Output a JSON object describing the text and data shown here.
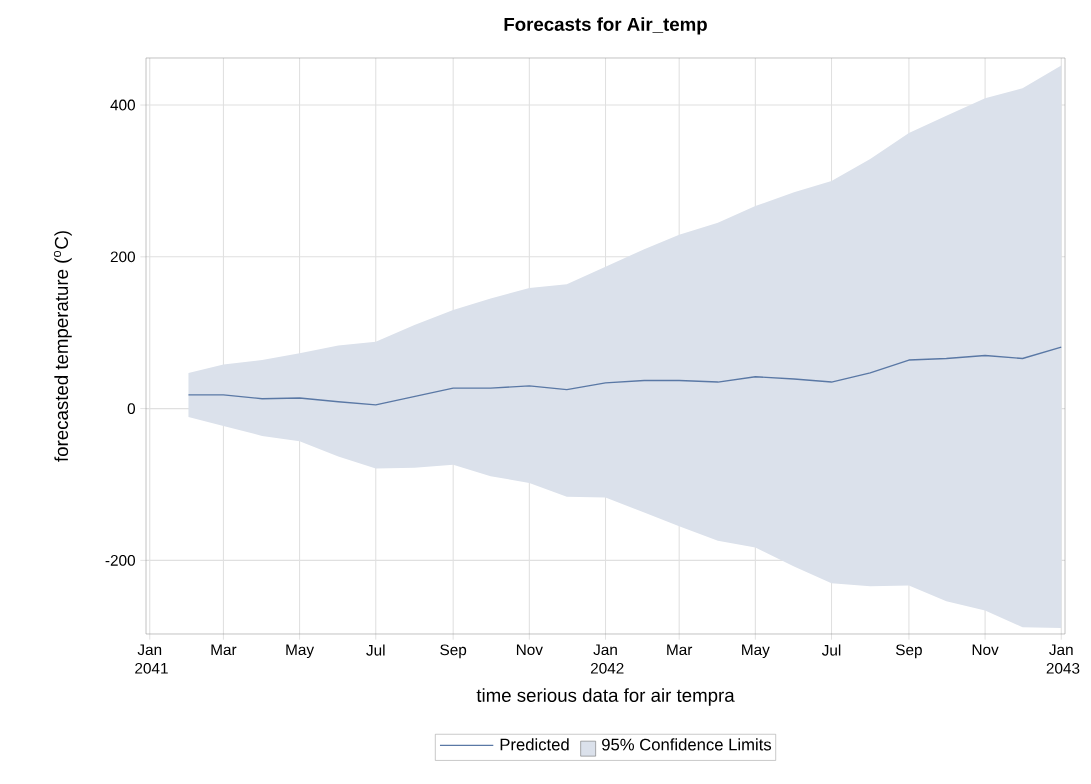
{
  "chart_data": {
    "type": "line",
    "title": "Forecasts for Air_temp",
    "xlabel": "time serious data for air tempra",
    "ylabel": "forecasted temperature ($^{o}$C)",
    "x": [
      "2041-02",
      "2041-03",
      "2041-04",
      "2041-05",
      "2041-06",
      "2041-07",
      "2041-08",
      "2041-09",
      "2041-10",
      "2041-11",
      "2041-12",
      "2042-01",
      "2042-02",
      "2042-03",
      "2042-04",
      "2042-05",
      "2042-06",
      "2042-07",
      "2042-08",
      "2042-09",
      "2042-10",
      "2042-11",
      "2042-12",
      "2043-01"
    ],
    "series": [
      {
        "name": "Predicted",
        "color": "#5a78a5",
        "values": [
          18,
          18,
          13,
          14,
          9,
          5,
          16,
          27,
          27,
          30,
          25,
          34,
          37,
          37,
          35,
          42,
          39,
          35,
          47,
          64,
          66,
          70,
          66,
          81
        ],
        "lower": [
          -11,
          -23,
          -36,
          -43,
          -63,
          -79,
          -78,
          -74,
          -89,
          -98,
          -116,
          -117,
          -137,
          -155,
          -174,
          -183,
          -208,
          -230,
          -234,
          -233,
          -254,
          -266,
          -288,
          -289
        ],
        "upper": [
          47,
          58,
          64,
          73,
          83,
          88,
          110,
          130,
          145,
          159,
          164,
          187,
          210,
          229,
          245,
          267,
          285,
          300,
          329,
          363,
          386,
          409,
          422,
          452
        ]
      }
    ],
    "annotations": [
      "95% Confidence Limits"
    ],
    "xlim": [
      "2040-12-29",
      "2043-01-04"
    ],
    "ylim": [
      -297,
      462
    ],
    "xticks": [
      {
        "value": "2041-01",
        "label": "Jan 2041"
      },
      {
        "value": "2041-03",
        "label": "Mar"
      },
      {
        "value": "2041-05",
        "label": "May"
      },
      {
        "value": "2041-07",
        "label": "Jul"
      },
      {
        "value": "2041-09",
        "label": "Sep"
      },
      {
        "value": "2041-11",
        "label": "Nov"
      },
      {
        "value": "2042-01",
        "label": "Jan 2042"
      },
      {
        "value": "2042-03",
        "label": "Mar"
      },
      {
        "value": "2042-05",
        "label": "May"
      },
      {
        "value": "2042-07",
        "label": "Jul"
      },
      {
        "value": "2042-09",
        "label": "Sep"
      },
      {
        "value": "2042-11",
        "label": "Nov"
      },
      {
        "value": "2043-01",
        "label": "Jan 2043"
      }
    ],
    "yticks": [
      -200,
      0,
      200,
      400
    ],
    "grid": true,
    "legend": "bottom"
  }
}
